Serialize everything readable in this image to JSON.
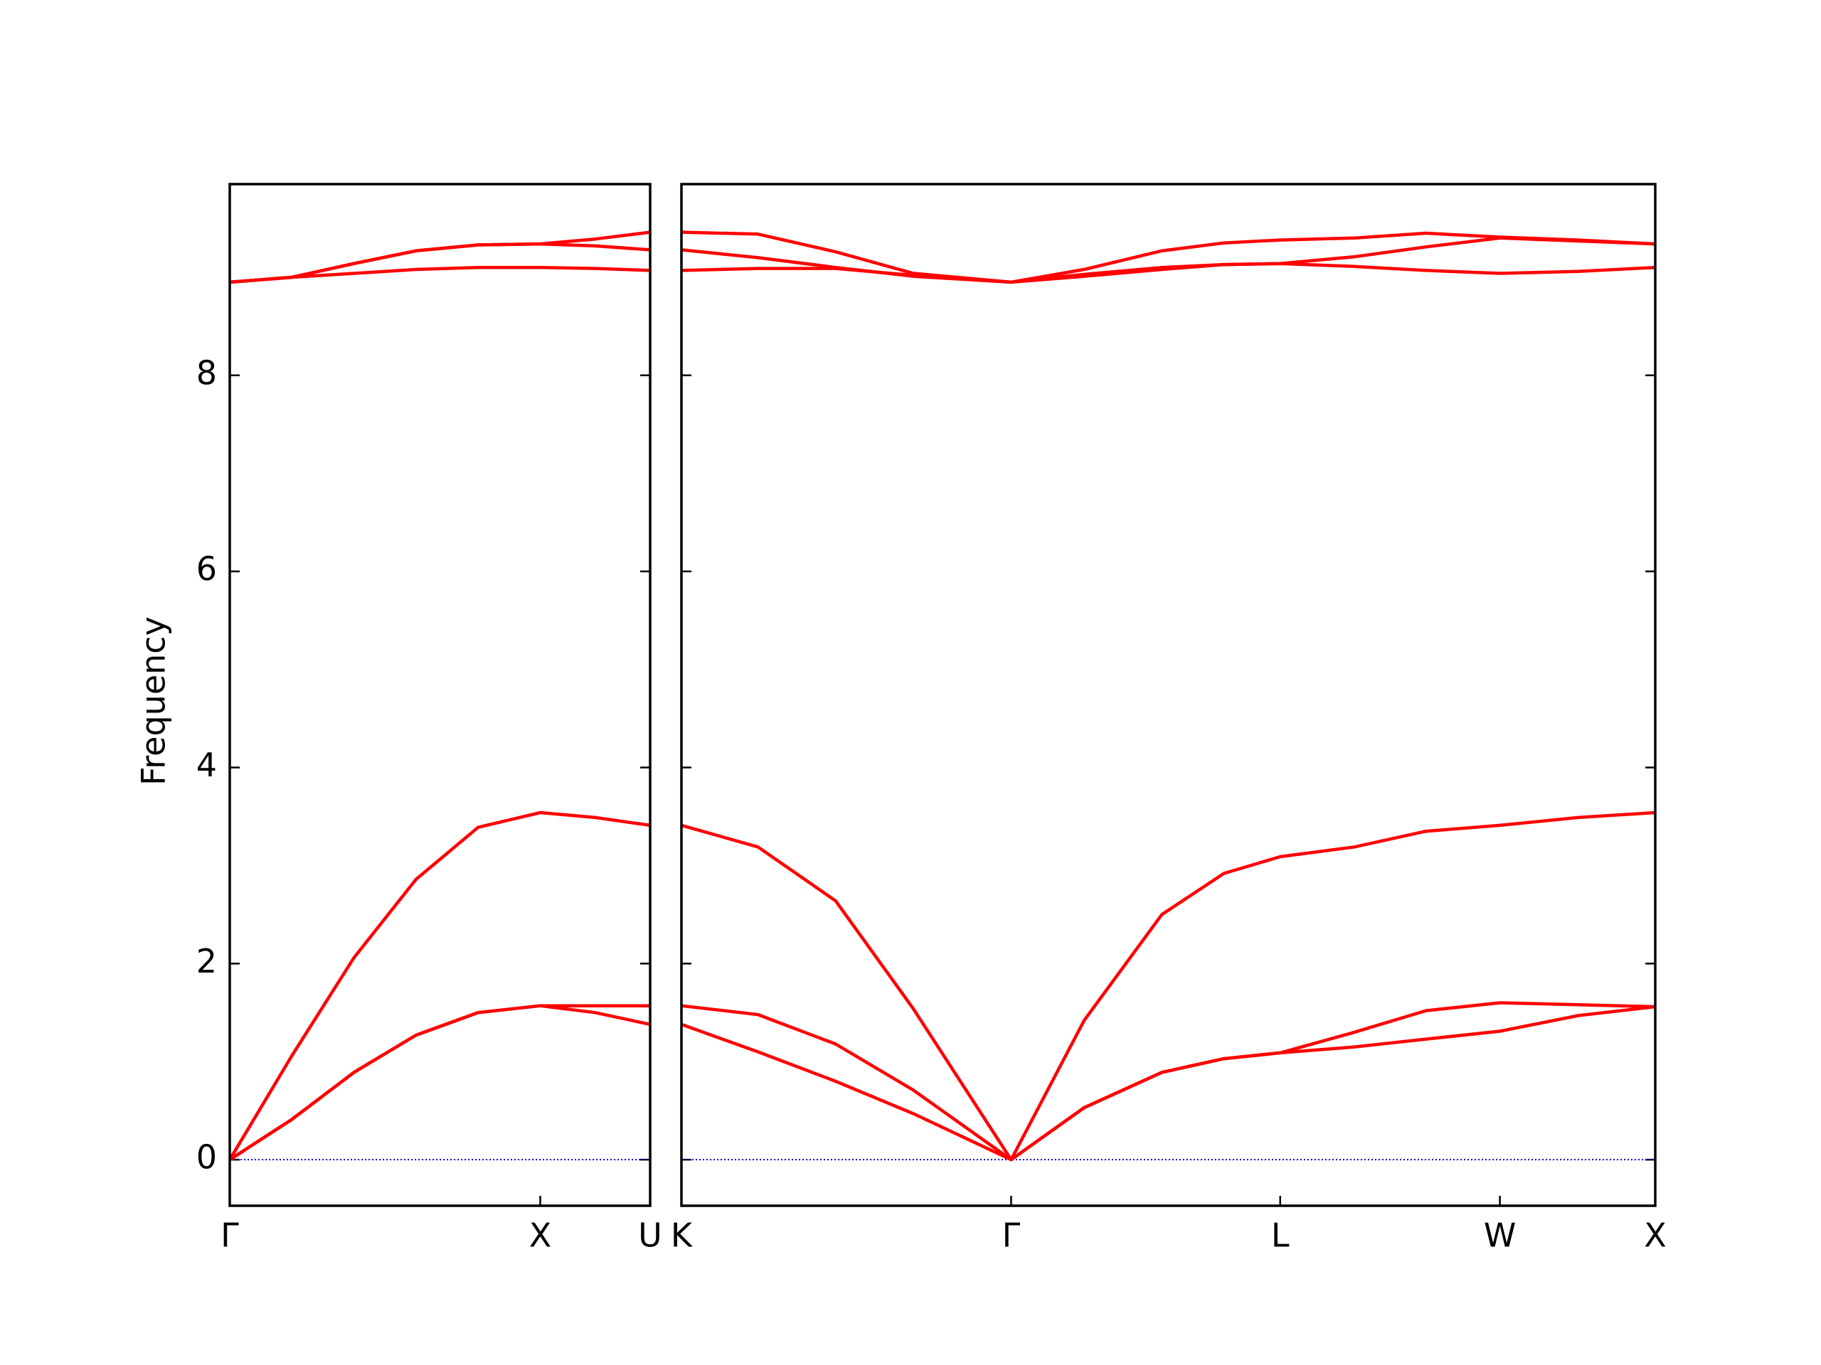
{
  "chart_data": [
    {
      "type": "line",
      "ylabel": "Frequency",
      "xlim": [
        0,
        1.354
      ],
      "ylim": [
        -0.47,
        9.95
      ],
      "xticks": [
        {
          "value": 0,
          "label": "Γ"
        },
        {
          "value": 1.0,
          "label": "X"
        },
        {
          "value": 1.354,
          "label": "U"
        }
      ],
      "yticks": [
        0,
        2,
        4,
        6,
        8
      ],
      "hline": {
        "y": 0,
        "color": "#0000cc"
      },
      "x": [
        0,
        0.2,
        0.4,
        0.6,
        0.8,
        1.0,
        1.177,
        1.354
      ],
      "series": [
        {
          "color": "#ff0000",
          "values": [
            0,
            0.41,
            0.89,
            1.27,
            1.5,
            1.57,
            1.5,
            1.38
          ]
        },
        {
          "color": "#ff0000",
          "values": [
            0,
            0.41,
            0.89,
            1.27,
            1.5,
            1.57,
            1.57,
            1.57
          ]
        },
        {
          "color": "#ff0000",
          "values": [
            0,
            1.06,
            2.06,
            2.86,
            3.39,
            3.54,
            3.49,
            3.41
          ]
        },
        {
          "color": "#ff0000",
          "values": [
            8.95,
            9.0,
            9.04,
            9.08,
            9.1,
            9.1,
            9.09,
            9.07
          ]
        },
        {
          "color": "#ff0000",
          "values": [
            8.95,
            9.0,
            9.14,
            9.27,
            9.33,
            9.34,
            9.32,
            9.28
          ]
        },
        {
          "color": "#ff0000",
          "values": [
            8.95,
            9.0,
            9.14,
            9.27,
            9.33,
            9.34,
            9.39,
            9.46
          ]
        }
      ]
    },
    {
      "type": "line",
      "xlim": [
        1.354,
        4.488
      ],
      "ylim": [
        -0.47,
        9.95
      ],
      "xticks": [
        {
          "value": 1.354,
          "label": "K"
        },
        {
          "value": 2.415,
          "label": "Γ"
        },
        {
          "value": 3.281,
          "label": "L"
        },
        {
          "value": 3.988,
          "label": "W"
        },
        {
          "value": 4.488,
          "label": "X"
        }
      ],
      "hline": {
        "y": 0,
        "color": "#0000cc"
      },
      "x": [
        1.354,
        1.6,
        1.85,
        2.1,
        2.415,
        2.65,
        2.9,
        3.1,
        3.281,
        3.52,
        3.75,
        3.988,
        4.24,
        4.488
      ],
      "series": [
        {
          "color": "#ff0000",
          "values": [
            1.38,
            1.1,
            0.8,
            0.47,
            0,
            0.53,
            0.89,
            1.03,
            1.09,
            1.15,
            1.23,
            1.31,
            1.47,
            1.56
          ]
        },
        {
          "color": "#ff0000",
          "values": [
            1.57,
            1.48,
            1.18,
            0.71,
            0,
            0.53,
            0.89,
            1.03,
            1.09,
            1.3,
            1.52,
            1.6,
            1.58,
            1.56
          ]
        },
        {
          "color": "#ff0000",
          "values": [
            3.41,
            3.19,
            2.64,
            1.54,
            0,
            1.42,
            2.5,
            2.92,
            3.09,
            3.19,
            3.35,
            3.41,
            3.49,
            3.54
          ]
        },
        {
          "color": "#ff0000",
          "values": [
            9.07,
            9.09,
            9.09,
            9.02,
            8.95,
            9.01,
            9.08,
            9.13,
            9.14,
            9.11,
            9.07,
            9.04,
            9.06,
            9.1
          ]
        },
        {
          "color": "#ff0000",
          "values": [
            9.28,
            9.2,
            9.1,
            9.01,
            8.95,
            9.03,
            9.1,
            9.13,
            9.14,
            9.21,
            9.31,
            9.4,
            9.37,
            9.34
          ]
        },
        {
          "color": "#ff0000",
          "values": [
            9.46,
            9.44,
            9.26,
            9.04,
            8.95,
            9.08,
            9.27,
            9.35,
            9.38,
            9.4,
            9.45,
            9.41,
            9.38,
            9.34
          ]
        }
      ]
    }
  ]
}
